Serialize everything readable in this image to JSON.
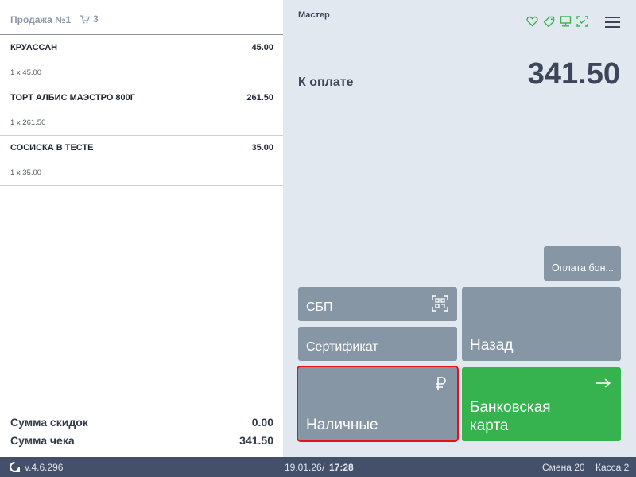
{
  "sale": {
    "title": "Продажа №1",
    "cart_count": "3"
  },
  "items": [
    {
      "name": "КРУАССАН",
      "price": "45.00",
      "qty": "1 x 45.00"
    },
    {
      "name": "ТОРТ АЛБИС МАЭСТРО 800Г",
      "price": "261.50",
      "qty": "1 x 261.50"
    },
    {
      "name": "СОСИСКА В ТЕСТЕ",
      "price": "35.00",
      "qty": "1 x 35.00"
    }
  ],
  "summary": {
    "discount_label": "Сумма скидок",
    "discount": "0.00",
    "total_label": "Сумма чека",
    "total": "341.50"
  },
  "right": {
    "user": "Мастер",
    "to_pay_label": "К оплате",
    "to_pay": "341.50",
    "icons": [
      "heart-icon",
      "tag-icon",
      "monitor-icon",
      "scan-check-icon",
      "menu-icon"
    ]
  },
  "buttons": {
    "bonus": "Оплата бон...",
    "sbp": "СБП",
    "certificate": "Сертификат",
    "back": "Назад",
    "cash": "Наличные",
    "card": "Банковская карта"
  },
  "footer": {
    "version": "v.4.6.296",
    "date": "19.01.26",
    "time": "17:28",
    "shift": "Смена 20",
    "register": "Касса 2"
  },
  "colors": {
    "accent_green": "#36b24f",
    "button_gray": "#8796a5",
    "footer": "#44506a",
    "highlight": "#e8101a"
  }
}
